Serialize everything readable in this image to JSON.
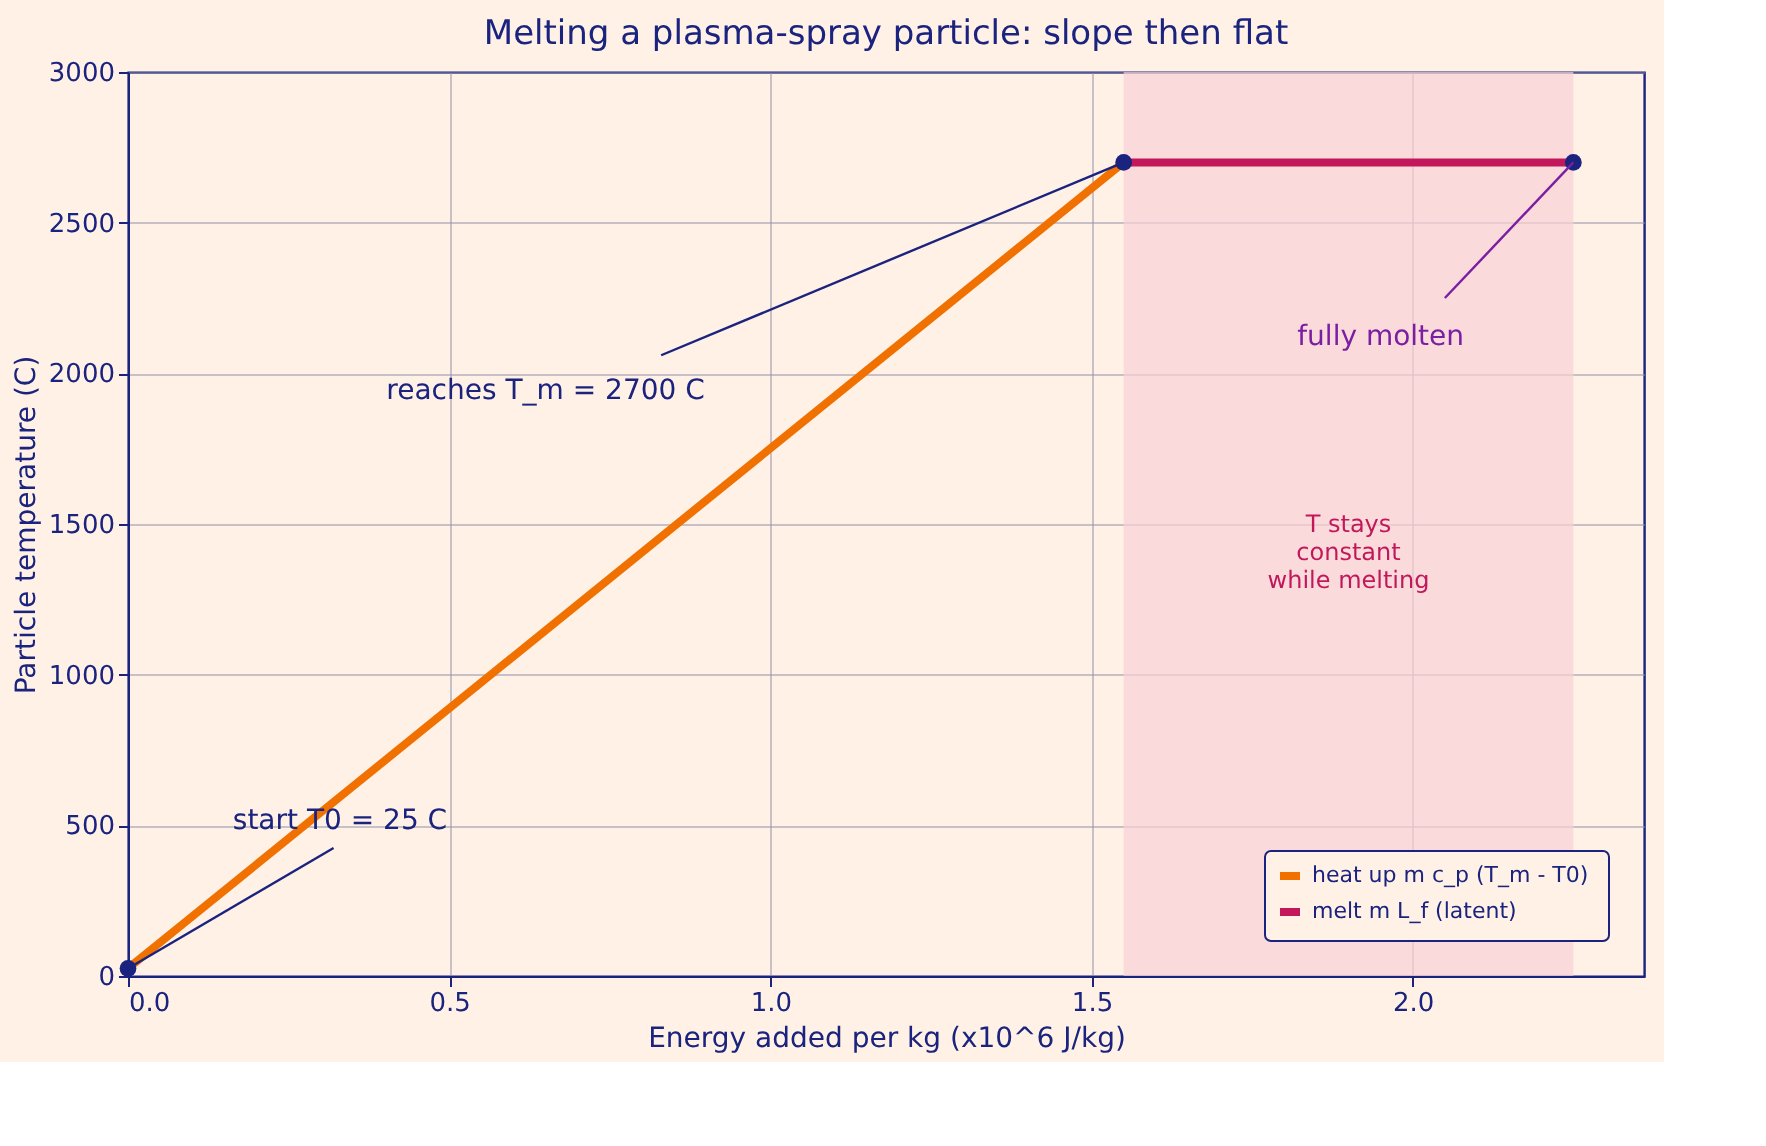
{
  "chart_data": {
    "type": "line",
    "title": "Melting a plasma-spray particle: slope then flat",
    "xlabel": "Energy added per kg  (x10^6 J/kg)",
    "ylabel": "Particle temperature  (C)",
    "xlim": [
      0,
      2.36
    ],
    "ylim": [
      0,
      3000
    ],
    "xticks": [
      {
        "value": 0,
        "label": "0.0"
      },
      0.5,
      {
        "value": 1,
        "label": "1.0"
      },
      1.5,
      {
        "value": 2,
        "label": "2.0"
      }
    ],
    "yticks": [
      0,
      500,
      1000,
      1500,
      2000,
      2500,
      3000
    ],
    "grid": true,
    "legend": "bottom right",
    "marker": "none",
    "line_style": "solid",
    "series": [
      {
        "name": "heat up  m c_p (T_m - T0)",
        "color": "#f07000",
        "x": [
          0,
          1.55
        ],
        "values": [
          25,
          2700
        ]
      },
      {
        "name": "melt  m L_f (latent)",
        "color": "#c2185b",
        "x": [
          1.55,
          2.25
        ],
        "values": [
          2700,
          2700
        ]
      },
      {
        "type": "scatter",
        "marker": "circle",
        "color": "#1a237e",
        "x": [
          0,
          1.55,
          2.25
        ],
        "values": [
          25,
          2700,
          2700
        ]
      }
    ],
    "bands": [
      {
        "axis": "x",
        "from": 1.55,
        "to": 2.25,
        "label": "T stays\nconstant\nwhile melting",
        "color": "#f8d0d4"
      }
    ],
    "annotations": [
      {
        "text": "start T0 = 25 C",
        "x": 0,
        "y": 25
      },
      {
        "text": "reaches T_m = 2700 C",
        "x": 1.55,
        "y": 2700
      },
      {
        "text": "fully molten",
        "x": 2.25,
        "y": 2700
      }
    ]
  }
}
